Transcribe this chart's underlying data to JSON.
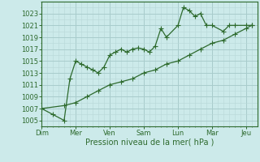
{
  "background_color": "#cceaea",
  "grid_color_major": "#a8cccc",
  "grid_color_minor": "#b8d8d8",
  "line_color": "#2d6a2d",
  "ylabel_ticks": [
    1005,
    1007,
    1009,
    1011,
    1013,
    1015,
    1017,
    1019,
    1021,
    1023
  ],
  "xlabel": "Pression niveau de la mer( hPa )",
  "xtick_labels": [
    "Dim",
    "Mer",
    "Ven",
    "Sam",
    "Lun",
    "Mar",
    "Jeu"
  ],
  "xtick_positions": [
    0,
    1,
    2,
    3,
    4,
    5,
    6
  ],
  "line1_x": [
    0,
    0.33,
    0.66,
    0.83,
    1.0,
    1.16,
    1.33,
    1.5,
    1.66,
    1.83,
    2.0,
    2.16,
    2.33,
    2.5,
    2.66,
    2.83,
    3.0,
    3.16,
    3.33,
    3.5,
    3.66,
    4.0,
    4.16,
    4.33,
    4.5,
    4.66,
    4.83,
    5.0,
    5.33,
    5.5,
    5.66,
    6.0,
    6.16
  ],
  "line1_y": [
    1007,
    1006,
    1005,
    1012,
    1015,
    1014.5,
    1014,
    1013.5,
    1013,
    1014,
    1016,
    1016.5,
    1017,
    1016.5,
    1017,
    1017.2,
    1017,
    1016.5,
    1017.5,
    1020.5,
    1019,
    1021,
    1024,
    1023.5,
    1022.5,
    1023,
    1021,
    1021,
    1020,
    1021,
    1021,
    1021,
    1021
  ],
  "line2_x": [
    0,
    0.66,
    1.0,
    1.33,
    1.66,
    2.0,
    2.33,
    2.66,
    3.0,
    3.33,
    3.66,
    4.0,
    4.33,
    4.66,
    5.0,
    5.33,
    5.66,
    6.0,
    6.16
  ],
  "line2_y": [
    1007,
    1007.5,
    1008,
    1009,
    1010,
    1011,
    1011.5,
    1012,
    1013,
    1013.5,
    1014.5,
    1015,
    1016,
    1017,
    1018,
    1018.5,
    1019.5,
    1020.5,
    1021
  ],
  "ylim": [
    1004,
    1025
  ],
  "xlim": [
    0,
    6.33
  ]
}
